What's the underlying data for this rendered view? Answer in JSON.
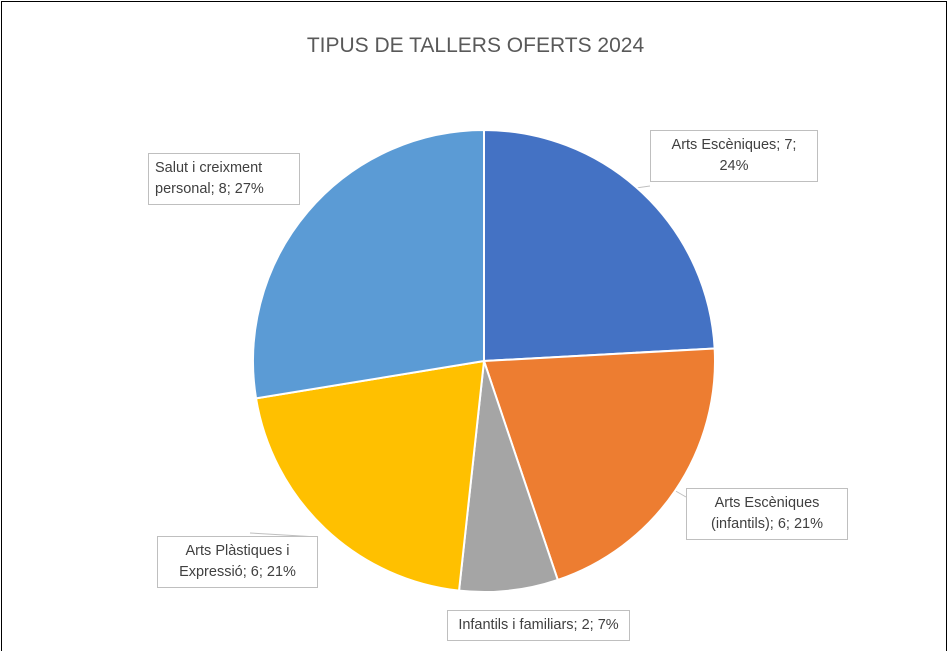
{
  "chart_data": {
    "type": "pie",
    "title": "TIPUS DE TALLERS OFERTS 2024",
    "categories": [
      "Arts Escèniques",
      "Arts Escèniques (infantils)",
      "Infantils i familiars",
      "Arts Plàstiques i Expressió",
      "Salut i creixment personal"
    ],
    "values": [
      7,
      6,
      2,
      6,
      8
    ],
    "value_labels": [
      "Arts Escèniques; 7; 24%",
      "Arts Escèniques (infantils); 6; 21%",
      "Infantils i familiars; 2; 7%",
      "Arts Plàstiques i Expressió; 6; 21%",
      "Salut i creixment personal; 8; 27%"
    ],
    "colors": [
      "#4472c4",
      "#ed7d31",
      "#a5a5a5",
      "#ffc000",
      "#5b9bd5"
    ]
  }
}
